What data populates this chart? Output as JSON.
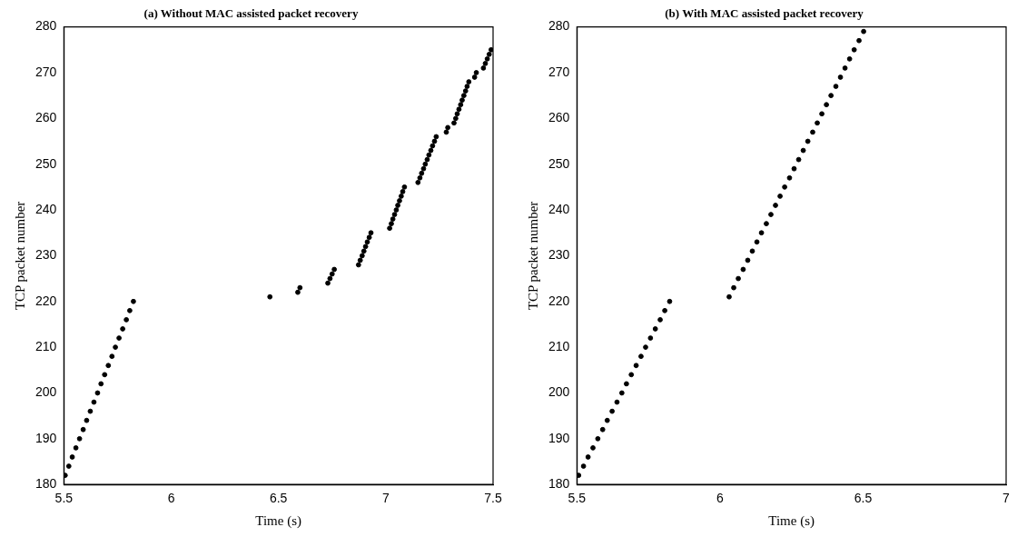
{
  "chart_data": [
    {
      "type": "scatter",
      "title": "(a) Without MAC assisted packet recovery",
      "xlabel": "Time (s)",
      "ylabel": "TCP packet number",
      "xlim": [
        5.5,
        7.5
      ],
      "xticks": [
        5.5,
        6,
        6.5,
        7,
        7.5
      ],
      "ylim": [
        180,
        280
      ],
      "yticks": [
        180,
        190,
        200,
        210,
        220,
        230,
        240,
        250,
        260,
        270,
        280
      ],
      "marker": "circle",
      "series": [
        {
          "color": "#000000",
          "x": [
            5.506,
            5.523,
            5.539,
            5.556,
            5.573,
            5.59,
            5.606,
            5.623,
            5.64,
            5.657,
            5.673,
            5.69,
            5.707,
            5.724,
            5.74,
            5.757,
            5.774,
            5.791,
            5.807,
            5.824,
            6.46,
            6.59,
            6.6,
            6.73,
            6.74,
            6.75,
            6.76,
            6.873,
            6.881,
            6.89,
            6.898,
            6.906,
            6.914,
            6.923,
            6.931,
            7.018,
            7.026,
            7.033,
            7.041,
            7.049,
            7.056,
            7.064,
            7.072,
            7.079,
            7.087,
            7.15,
            7.159,
            7.167,
            7.176,
            7.184,
            7.193,
            7.201,
            7.21,
            7.218,
            7.227,
            7.235,
            7.282,
            7.289,
            7.318,
            7.326,
            7.333,
            7.341,
            7.349,
            7.356,
            7.364,
            7.372,
            7.379,
            7.387,
            7.414,
            7.422,
            7.455,
            7.464,
            7.473,
            7.482,
            7.491
          ],
          "values": [
            182,
            184,
            186,
            188,
            190,
            192,
            194,
            196,
            198,
            200,
            202,
            204,
            206,
            208,
            210,
            212,
            214,
            216,
            218,
            220,
            221,
            222,
            223,
            224,
            225,
            226,
            227,
            228,
            229,
            230,
            231,
            232,
            233,
            234,
            235,
            236,
            237,
            238,
            239,
            240,
            241,
            242,
            243,
            244,
            245,
            246,
            247,
            248,
            249,
            250,
            251,
            252,
            253,
            254,
            255,
            256,
            257,
            258,
            259,
            260,
            261,
            262,
            263,
            264,
            265,
            266,
            267,
            268,
            269,
            270,
            271,
            272,
            273,
            274,
            275
          ]
        }
      ]
    },
    {
      "type": "scatter",
      "title": "(b) With MAC assisted packet recovery",
      "xlabel": "Time (s)",
      "ylabel": "TCP packet number",
      "xlim": [
        5.5,
        7
      ],
      "xticks": [
        5.5,
        6,
        6.5,
        7
      ],
      "ylim": [
        180,
        280
      ],
      "yticks": [
        180,
        190,
        200,
        210,
        220,
        230,
        240,
        250,
        260,
        270,
        280
      ],
      "marker": "circle",
      "series": [
        {
          "color": "#000000",
          "x": [
            5.506,
            5.523,
            5.539,
            5.556,
            5.573,
            5.59,
            5.606,
            5.623,
            5.64,
            5.657,
            5.673,
            5.69,
            5.707,
            5.724,
            5.74,
            5.757,
            5.774,
            5.791,
            5.807,
            5.824,
            6.032,
            6.048,
            6.064,
            6.081,
            6.097,
            6.113,
            6.129,
            6.145,
            6.162,
            6.178,
            6.194,
            6.21,
            6.226,
            6.243,
            6.259,
            6.275,
            6.291,
            6.307,
            6.324,
            6.34,
            6.356,
            6.372,
            6.388,
            6.405,
            6.421,
            6.437,
            6.453,
            6.469,
            6.486,
            6.502
          ],
          "values": [
            182,
            184,
            186,
            188,
            190,
            192,
            194,
            196,
            198,
            200,
            202,
            204,
            206,
            208,
            210,
            212,
            214,
            216,
            218,
            220,
            221,
            223,
            225,
            227,
            229,
            231,
            233,
            235,
            237,
            239,
            241,
            243,
            245,
            247,
            249,
            251,
            253,
            255,
            257,
            259,
            261,
            263,
            265,
            267,
            269,
            271,
            273,
            275,
            277,
            279
          ]
        }
      ]
    }
  ]
}
